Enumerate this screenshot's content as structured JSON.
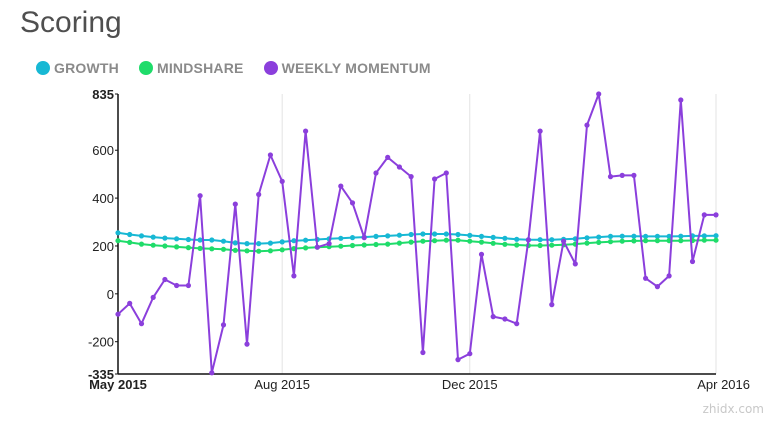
{
  "title": "Scoring",
  "legend": [
    {
      "label": "GROWTH",
      "color": "#17b8d4"
    },
    {
      "label": "MINDSHARE",
      "color": "#1fdc6a"
    },
    {
      "label": "WEEKLY MOMENTUM",
      "color": "#8b3fdc"
    }
  ],
  "chart_data": {
    "type": "line",
    "title": "Scoring",
    "ylim": [
      -335,
      835
    ],
    "y_ticks": [
      "835",
      "600",
      "400",
      "200",
      "0",
      "-200",
      "-335"
    ],
    "x_ticks": [
      "May 2015",
      "Aug 2015",
      "Dec 2015",
      "Apr 2016"
    ],
    "x_range_weeks": [
      0,
      51
    ],
    "x_tick_weeks": [
      0,
      14,
      30,
      51
    ],
    "grid": "vertical",
    "series": [
      {
        "name": "GROWTH",
        "color": "#17b8d4",
        "values": [
          255,
          248,
          242,
          237,
          233,
          230,
          227,
          225,
          225,
          220,
          213,
          210,
          210,
          212,
          217,
          222,
          224,
          227,
          230,
          232,
          235,
          237,
          240,
          242,
          245,
          248,
          250,
          250,
          250,
          248,
          244,
          240,
          236,
          232,
          228,
          226,
          226,
          226,
          228,
          230,
          234,
          237,
          240,
          241,
          241,
          240,
          240,
          240,
          241,
          242,
          242,
          243
        ]
      },
      {
        "name": "MINDSHARE",
        "color": "#1fdc6a",
        "values": [
          222,
          215,
          208,
          203,
          200,
          196,
          193,
          190,
          188,
          186,
          182,
          180,
          178,
          180,
          184,
          189,
          192,
          195,
          197,
          199,
          202,
          204,
          206,
          208,
          212,
          216,
          220,
          222,
          224,
          224,
          220,
          216,
          211,
          207,
          204,
          202,
          202,
          203,
          205,
          208,
          212,
          215,
          218,
          220,
          221,
          222,
          222,
          222,
          222,
          223,
          224,
          224
        ]
      },
      {
        "name": "WEEKLY MOMENTUM",
        "color": "#8b3fdc",
        "values": [
          -85,
          -40,
          -125,
          -15,
          60,
          35,
          35,
          410,
          -330,
          -130,
          375,
          -210,
          415,
          580,
          470,
          75,
          680,
          195,
          210,
          450,
          380,
          235,
          505,
          570,
          530,
          490,
          -245,
          480,
          505,
          -275,
          -250,
          165,
          -95,
          -105,
          -125,
          225,
          680,
          -45,
          220,
          125,
          705,
          835,
          490,
          495,
          495,
          65,
          30,
          75,
          810,
          135,
          330,
          330
        ]
      }
    ]
  },
  "watermark": "zhidx.com"
}
